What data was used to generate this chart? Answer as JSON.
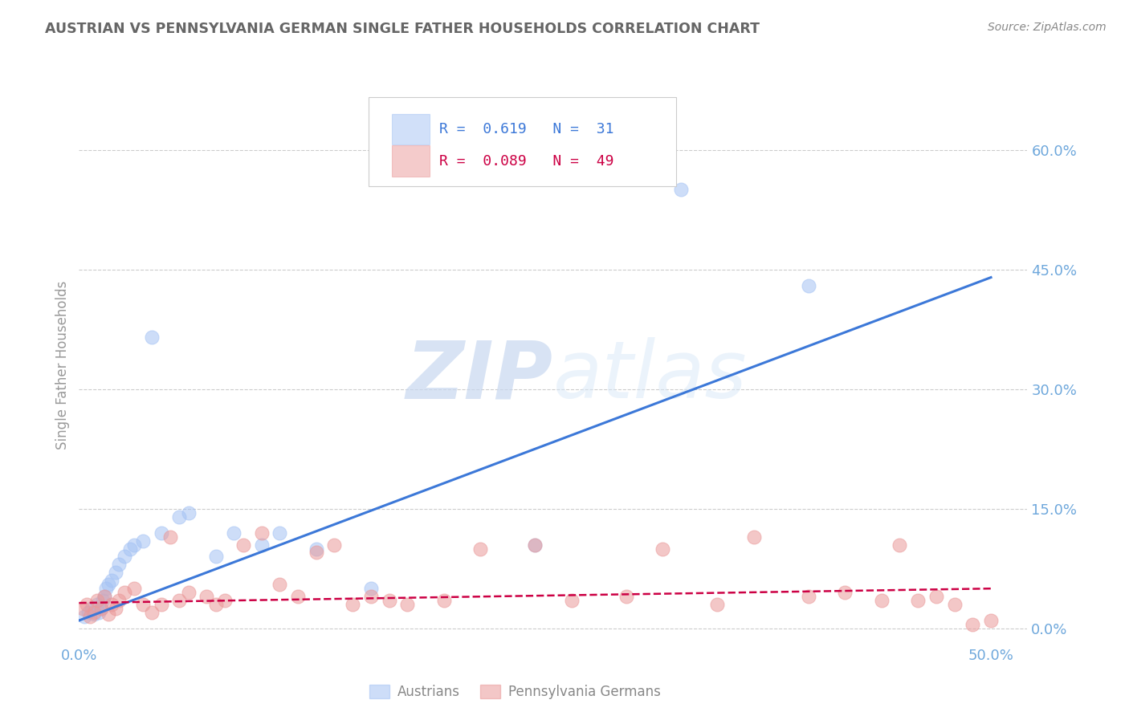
{
  "title": "AUSTRIAN VS PENNSYLVANIA GERMAN SINGLE FATHER HOUSEHOLDS CORRELATION CHART",
  "source": "Source: ZipAtlas.com",
  "ylabel": "Single Father Households",
  "ytick_values": [
    0.0,
    15.0,
    30.0,
    45.0,
    60.0
  ],
  "xlim": [
    0.0,
    52.0
  ],
  "ylim": [
    -2.0,
    68.0
  ],
  "watermark": "ZIPatlas",
  "legend_blue_R": "0.619",
  "legend_blue_N": "31",
  "legend_pink_R": "0.089",
  "legend_pink_N": "49",
  "blue_color": "#a4c2f4",
  "pink_color": "#ea9999",
  "blue_line_color": "#3c78d8",
  "pink_line_color": "#cc0044",
  "background_color": "#ffffff",
  "grid_color": "#cccccc",
  "title_color": "#666666",
  "axis_label_color": "#6fa8dc",
  "blue_scatter_x": [
    0.3,
    0.5,
    0.7,
    0.8,
    1.0,
    1.1,
    1.2,
    1.3,
    1.4,
    1.5,
    1.6,
    1.8,
    2.0,
    2.2,
    2.5,
    2.8,
    3.0,
    3.5,
    4.0,
    4.5,
    5.5,
    6.0,
    7.5,
    8.5,
    10.0,
    11.0,
    13.0,
    16.0,
    25.0,
    33.0,
    40.0
  ],
  "blue_scatter_y": [
    1.5,
    2.0,
    2.5,
    1.8,
    3.0,
    2.0,
    2.5,
    3.5,
    4.0,
    5.0,
    5.5,
    6.0,
    7.0,
    8.0,
    9.0,
    10.0,
    10.5,
    11.0,
    36.5,
    12.0,
    14.0,
    14.5,
    9.0,
    12.0,
    10.5,
    12.0,
    10.0,
    5.0,
    10.5,
    55.0,
    43.0
  ],
  "pink_scatter_x": [
    0.2,
    0.4,
    0.6,
    0.8,
    1.0,
    1.2,
    1.4,
    1.6,
    1.8,
    2.0,
    2.2,
    2.5,
    3.0,
    3.5,
    4.0,
    4.5,
    5.0,
    5.5,
    6.0,
    7.0,
    7.5,
    8.0,
    9.0,
    10.0,
    11.0,
    12.0,
    13.0,
    14.0,
    15.0,
    16.0,
    17.0,
    18.0,
    20.0,
    22.0,
    25.0,
    27.0,
    30.0,
    32.0,
    35.0,
    37.0,
    40.0,
    42.0,
    44.0,
    45.0,
    46.0,
    47.0,
    48.0,
    49.0,
    50.0
  ],
  "pink_scatter_y": [
    2.5,
    3.0,
    1.5,
    2.0,
    3.5,
    2.5,
    4.0,
    1.8,
    3.0,
    2.5,
    3.5,
    4.5,
    5.0,
    3.0,
    2.0,
    3.0,
    11.5,
    3.5,
    4.5,
    4.0,
    3.0,
    3.5,
    10.5,
    12.0,
    5.5,
    4.0,
    9.5,
    10.5,
    3.0,
    4.0,
    3.5,
    3.0,
    3.5,
    10.0,
    10.5,
    3.5,
    4.0,
    10.0,
    3.0,
    11.5,
    4.0,
    4.5,
    3.5,
    10.5,
    3.5,
    4.0,
    3.0,
    0.5,
    1.0
  ],
  "blue_regline_x": [
    0.0,
    50.0
  ],
  "blue_regline_y": [
    1.0,
    44.0
  ],
  "pink_regline_x": [
    0.0,
    50.0
  ],
  "pink_regline_y": [
    3.2,
    5.0
  ]
}
